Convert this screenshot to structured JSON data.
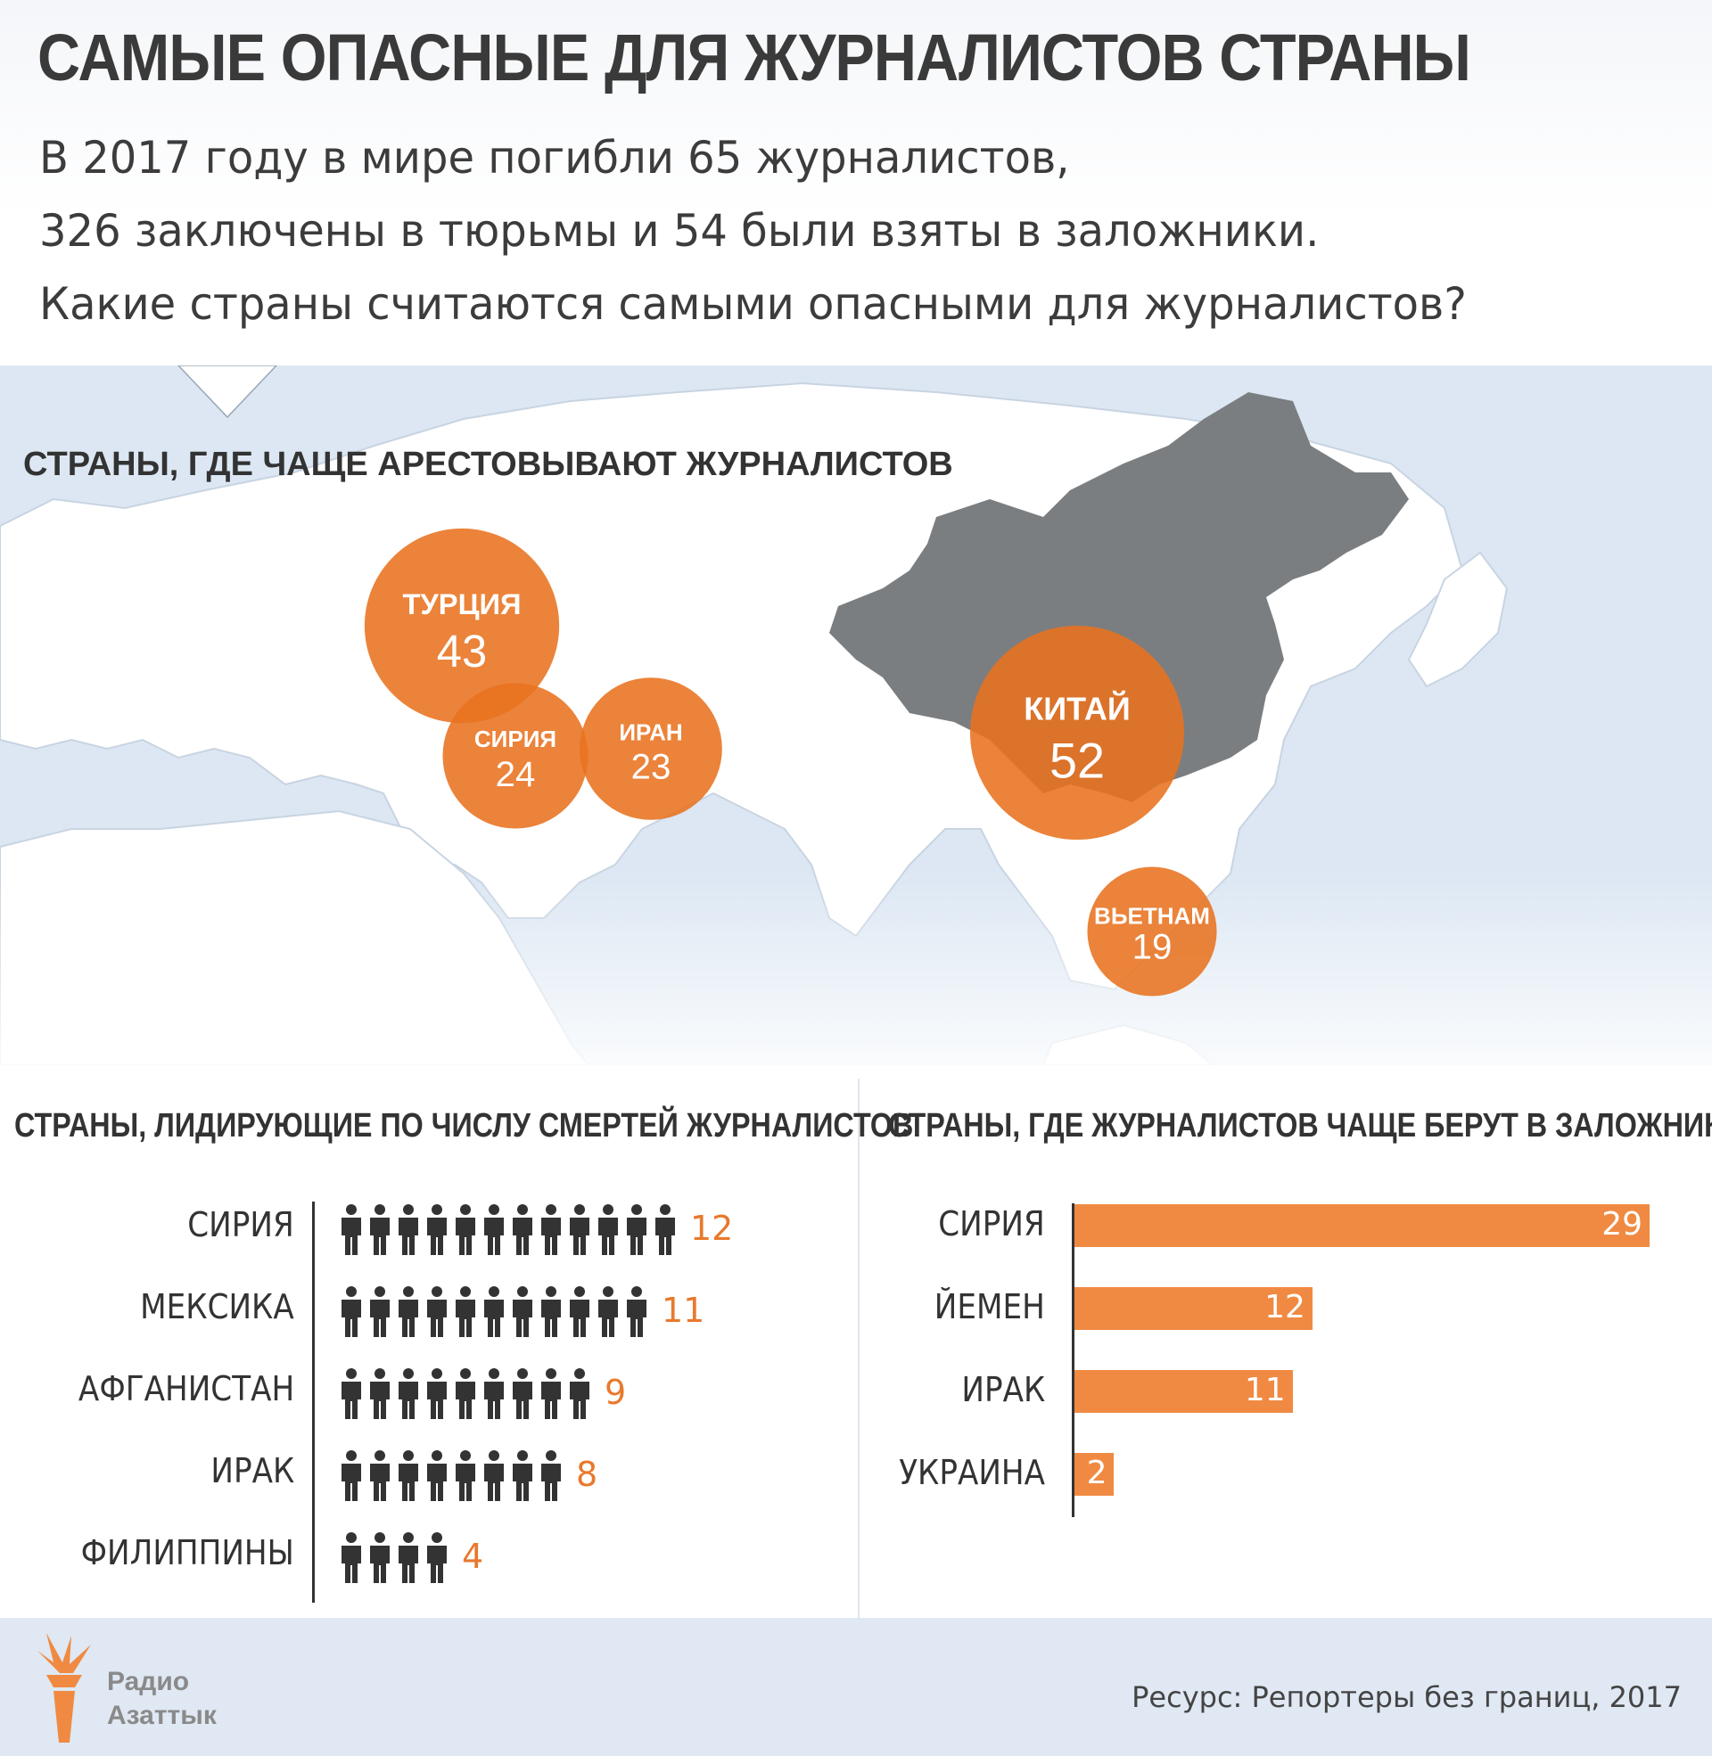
{
  "header": {
    "title": "САМЫЕ ОПАСНЫЕ ДЛЯ ЖУРНАЛИСТОВ СТРАНЫ",
    "intro_lines": [
      "В 2017 году в мире погибли 65 журналистов,",
      "326 заключены в тюрьмы и 54 были взяты в заложники.",
      "Какие страны считаются самыми опасными для журналистов?"
    ]
  },
  "colors": {
    "accent": "#e8792d",
    "bubble": "#e8721f",
    "bar": "#f08a42",
    "map_water": "#dce7f3",
    "map_land": "#ffffff",
    "china_land": "#7b7e80",
    "text": "#333333",
    "footer": "#dfe8f3"
  },
  "chart_data": [
    {
      "type": "bubble-map",
      "title": "СТРАНЫ, ГДЕ ЧАЩЕ АРЕСТОВЫВАЮТ ЖУРНАЛИСТОВ",
      "points": [
        {
          "label": "ТУРЦИЯ",
          "value": 43
        },
        {
          "label": "СИРИЯ",
          "value": 24
        },
        {
          "label": "ИРАН",
          "value": 23
        },
        {
          "label": "КИТАЙ",
          "value": 52
        },
        {
          "label": "ВЬЕТНАМ",
          "value": 19
        }
      ]
    },
    {
      "type": "pictogram",
      "title": "СТРАНЫ, ЛИДИРУЮЩИЕ ПО ЧИСЛУ СМЕРТЕЙ ЖУРНАЛИСТОВ",
      "categories": [
        "СИРИЯ",
        "МЕКСИКА",
        "АФГАНИСТАН",
        "ИРАК",
        "ФИЛИППИНЫ"
      ],
      "values": [
        12,
        11,
        9,
        8,
        4
      ],
      "icon": "person-icon"
    },
    {
      "type": "bar",
      "orientation": "horizontal",
      "title": "СТРАНЫ, ГДЕ ЖУРНАЛИСТОВ ЧАЩЕ БЕРУТ В ЗАЛОЖНИКИ",
      "categories": [
        "СИРИЯ",
        "ЙЕМЕН",
        "ИРАК",
        "УКРАИНА"
      ],
      "values": [
        29,
        12,
        11,
        2
      ],
      "xlim": [
        0,
        29
      ]
    }
  ],
  "footer": {
    "logo_line1": "Радио",
    "logo_line2": "Азаттык",
    "source": "Ресурс: Репортеры без границ, 2017"
  }
}
